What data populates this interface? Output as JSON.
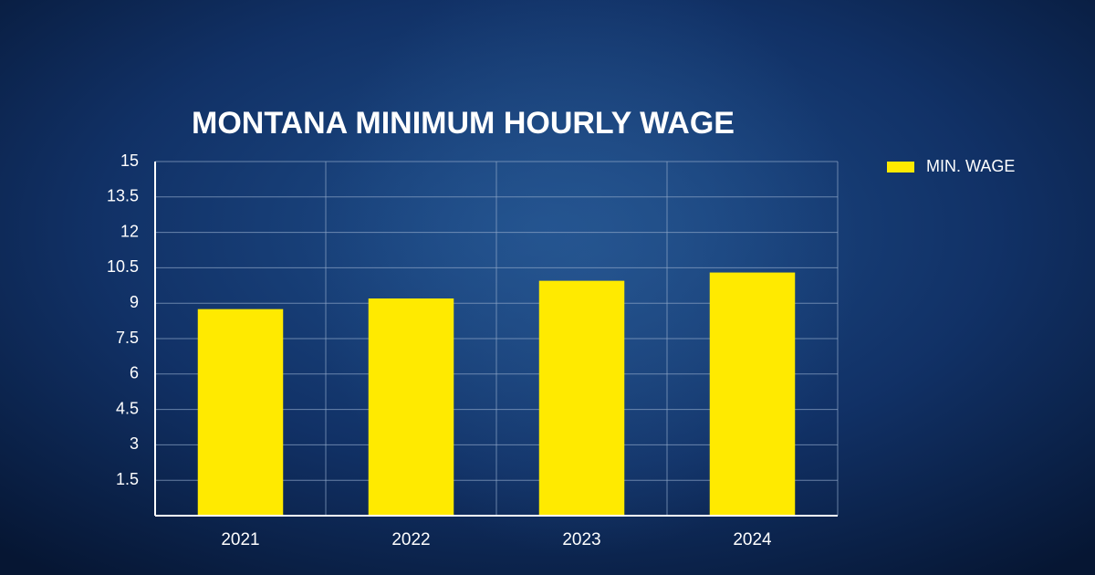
{
  "chart_data": {
    "type": "bar",
    "title": "MONTANA MINIMUM HOURLY WAGE",
    "categories": [
      "2021",
      "2022",
      "2023",
      "2024"
    ],
    "series": [
      {
        "name": "MIN. WAGE",
        "color": "#ffea00",
        "values": [
          8.75,
          9.2,
          9.95,
          10.3
        ]
      }
    ],
    "ylim": [
      0,
      15
    ],
    "yticks": [
      1.5,
      3,
      4.5,
      6,
      7.5,
      9,
      10.5,
      12,
      13.5,
      15
    ],
    "grid": true,
    "legend": "upper right"
  }
}
